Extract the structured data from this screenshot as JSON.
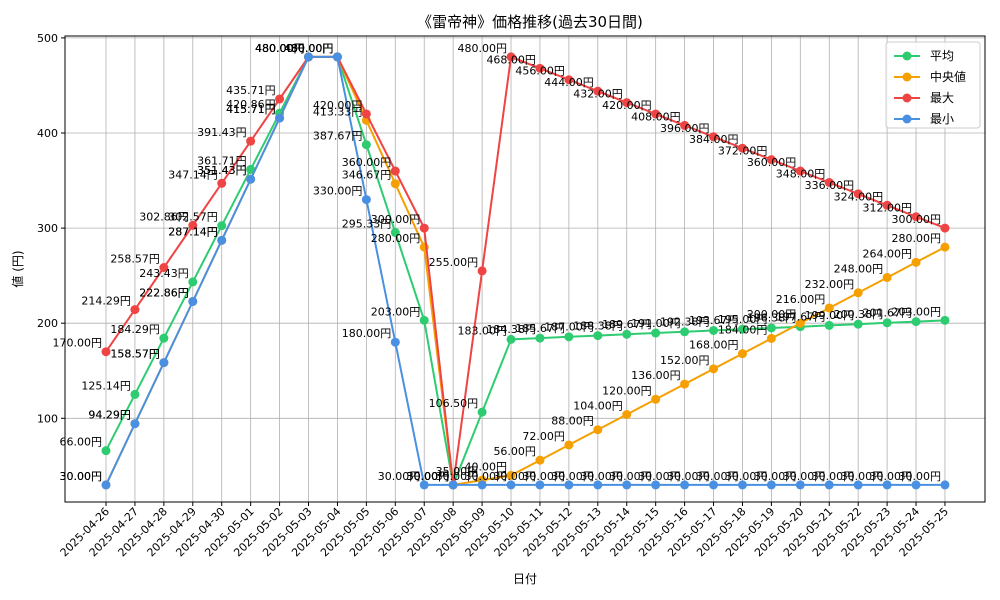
{
  "chart_data": {
    "type": "line",
    "title": "《雷帝神》価格推移(過去30日間)",
    "xlabel": "日付",
    "ylabel": "値 (円)",
    "ylim": [
      12,
      502
    ],
    "yticks": [
      100,
      200,
      300,
      400,
      500
    ],
    "grid": true,
    "legend_position": "top-right",
    "unit_suffix": "円",
    "categories": [
      "2025-04-26",
      "2025-04-27",
      "2025-04-28",
      "2025-04-29",
      "2025-04-30",
      "2025-05-01",
      "2025-05-02",
      "2025-05-03",
      "2025-05-04",
      "2025-05-05",
      "2025-05-06",
      "2025-05-07",
      "2025-05-08",
      "2025-05-09",
      "2025-05-10",
      "2025-05-11",
      "2025-05-12",
      "2025-05-13",
      "2025-05-14",
      "2025-05-15",
      "2025-05-16",
      "2025-05-17",
      "2025-05-18",
      "2025-05-19",
      "2025-05-20",
      "2025-05-21",
      "2025-05-22",
      "2025-05-23",
      "2025-05-24",
      "2025-05-25"
    ],
    "series": [
      {
        "name": "平均",
        "color": "#2ecc71",
        "values": [
          66.0,
          125.14,
          184.29,
          243.43,
          302.57,
          361.71,
          420.86,
          480.0,
          480.0,
          387.67,
          295.33,
          203.0,
          30.0,
          106.5,
          183.0,
          184.38,
          185.67,
          187.0,
          188.38,
          189.67,
          191.0,
          192.38,
          193.67,
          195.0,
          196.38,
          197.67,
          199.0,
          200.38,
          201.67,
          203.0
        ]
      },
      {
        "name": "中央値",
        "color": "#f5a000",
        "values": [
          30.0,
          94.29,
          158.57,
          222.86,
          287.14,
          351.43,
          415.71,
          480.0,
          480.0,
          413.33,
          346.67,
          280.0,
          30.0,
          35.0,
          40.0,
          56.0,
          72.0,
          88.0,
          104.0,
          120.0,
          136.0,
          152.0,
          168.0,
          184.0,
          200.0,
          216.0,
          232.0,
          248.0,
          264.0,
          280.0
        ]
      },
      {
        "name": "最大",
        "color": "#ef4444",
        "values": [
          170.0,
          214.29,
          258.57,
          302.86,
          347.14,
          391.43,
          435.71,
          480.0,
          480.0,
          420.0,
          360.0,
          300.0,
          30.0,
          255.0,
          480.0,
          468.0,
          456.0,
          444.0,
          432.0,
          420.0,
          408.0,
          396.0,
          384.0,
          372.0,
          360.0,
          348.0,
          336.0,
          324.0,
          312.0,
          300.0
        ]
      },
      {
        "name": "最小",
        "color": "#4a90e2",
        "values": [
          30.0,
          94.29,
          158.57,
          222.86,
          287.14,
          351.43,
          415.71,
          480.0,
          480.0,
          330.0,
          180.0,
          30.0,
          30.0,
          30.0,
          30.0,
          30.0,
          30.0,
          30.0,
          30.0,
          30.0,
          30.0,
          30.0,
          30.0,
          30.0,
          30.0,
          30.0,
          30.0,
          30.0,
          30.0,
          30.0
        ]
      }
    ]
  }
}
